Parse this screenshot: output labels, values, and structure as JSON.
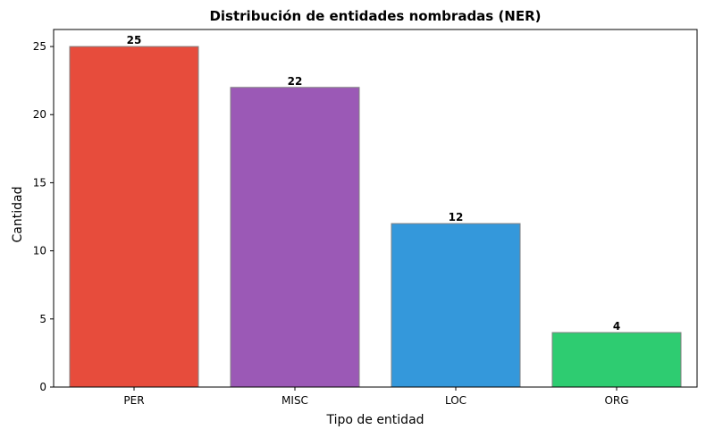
{
  "chart_data": {
    "type": "bar",
    "title": "Distribución de entidades nombradas (NER)",
    "xlabel": "Tipo de entidad",
    "ylabel": "Cantidad",
    "categories": [
      "PER",
      "MISC",
      "LOC",
      "ORG"
    ],
    "values": [
      25,
      22,
      12,
      4
    ],
    "bar_colors": [
      "#e74c3c",
      "#9b59b6",
      "#3498db",
      "#2ecc71"
    ],
    "bar_edge_color": "#808080",
    "ylim": [
      0,
      26.25
    ],
    "yticks": [
      0,
      5,
      10,
      15,
      20,
      25
    ],
    "grid": false,
    "legend": "none"
  }
}
